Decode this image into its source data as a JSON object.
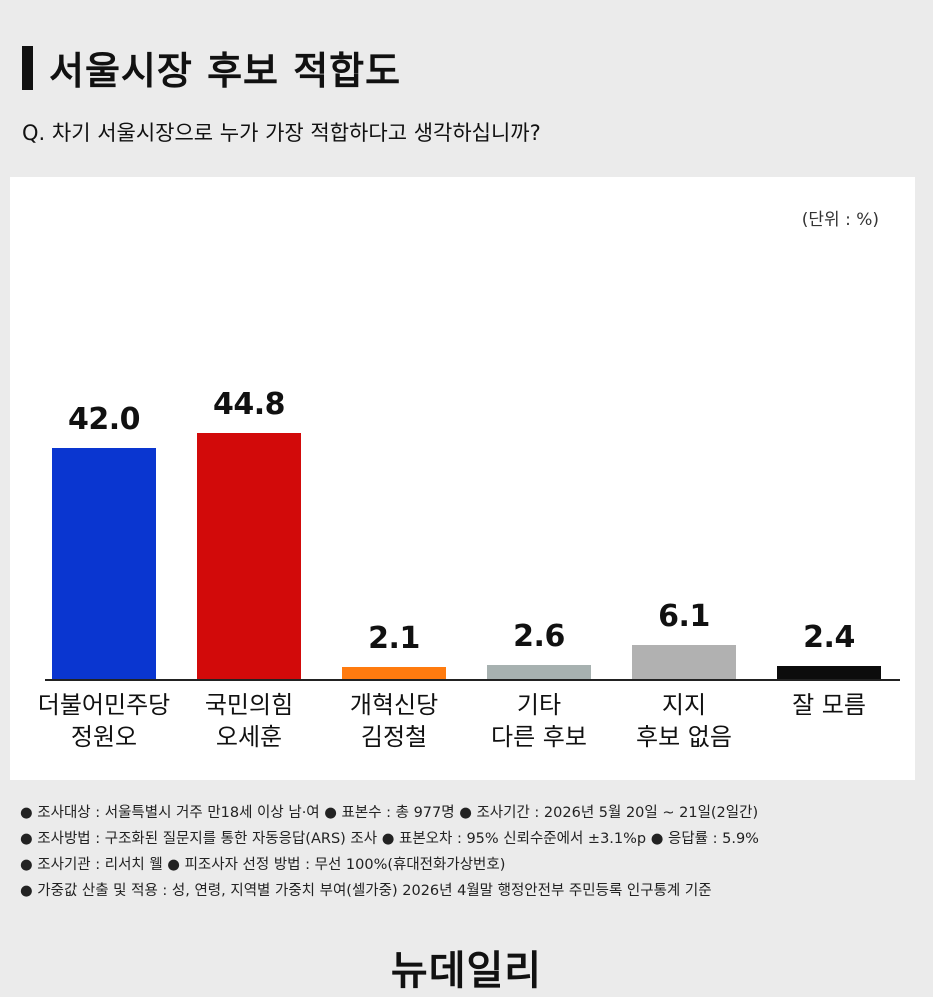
{
  "header": {
    "title": "서울시장 후보 적합도",
    "question": "Q. 차기 서울시장으로 누가 가장 적합하다고 생각하십니까?"
  },
  "chart_data": {
    "type": "bar",
    "unit_label": "(단위 : %)",
    "categories": [
      "더불어민주당\n정원오",
      "국민의힘\n오세훈",
      "개혁신당\n김정철",
      "기타\n다른 후보",
      "지지\n후보 없음",
      "잘 모름"
    ],
    "values": [
      42.0,
      44.8,
      2.1,
      2.6,
      6.1,
      2.4
    ],
    "value_labels": [
      "42.0",
      "44.8",
      "2.1",
      "2.6",
      "6.1",
      "2.4"
    ],
    "colors": [
      "#0a36d0",
      "#d20a0a",
      "#ff7b0f",
      "#a7b1b0",
      "#b1b1b1",
      "#0c0c0c"
    ],
    "ylim": [
      0,
      50
    ],
    "grid": false
  },
  "footnotes": [
    "● 조사대상 : 서울특별시 거주 만18세 이상 남·여 ● 표본수 : 총 977명 ● 조사기간 : 2026년 5월 20일 ~ 21일(2일간)",
    "● 조사방법 : 구조화된 질문지를 통한 자동응답(ARS) 조사 ● 표본오차 : 95% 신뢰수준에서 ±3.1%p ● 응답률 : 5.9%",
    "● 조사기관 : 리서치 웰 ● 피조사자 선정 방법 : 무선 100%(휴대전화가상번호)",
    "● 가중값 산출 및 적용 : 성, 연령, 지역별 가중치 부여(셀가중) 2026년 4월말 행정안전부 주민등록 인구통계 기준"
  ],
  "brand": {
    "logo_text": "뉴데일리"
  }
}
